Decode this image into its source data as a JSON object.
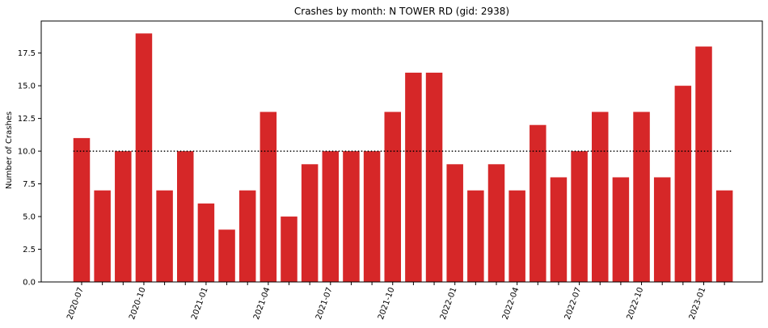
{
  "chart_data": {
    "type": "bar",
    "title": "Crashes by month: N TOWER RD (gid: 2938)",
    "xlabel": "",
    "ylabel": "Number of Crashes",
    "ylim": [
      0,
      19.95
    ],
    "yticks": [
      0.0,
      2.5,
      5.0,
      7.5,
      10.0,
      12.5,
      15.0,
      17.5
    ],
    "ytick_labels": [
      "0.0",
      "2.5",
      "5.0",
      "7.5",
      "10.0",
      "12.5",
      "15.0",
      "17.5"
    ],
    "categories": [
      "2020-07",
      "2020-08",
      "2020-09",
      "2020-10",
      "2020-11",
      "2020-12",
      "2021-01",
      "2021-02",
      "2021-03",
      "2021-04",
      "2021-05",
      "2021-06",
      "2021-07",
      "2021-08",
      "2021-09",
      "2021-10",
      "2021-11",
      "2021-12",
      "2022-01",
      "2022-02",
      "2022-03",
      "2022-04",
      "2022-05",
      "2022-06",
      "2022-07",
      "2022-08",
      "2022-09",
      "2022-10",
      "2022-11",
      "2022-12",
      "2023-01",
      "2023-02"
    ],
    "values": [
      11,
      7,
      10,
      19,
      7,
      10,
      6,
      4,
      7,
      13,
      5,
      9,
      10,
      10,
      10,
      13,
      16,
      16,
      9,
      7,
      9,
      7,
      12,
      8,
      10,
      13,
      8,
      13,
      8,
      15,
      18,
      7
    ],
    "xtick_labels": [
      "2020-07",
      "2020-10",
      "2021-01",
      "2021-04",
      "2021-07",
      "2021-10",
      "2022-01",
      "2022-04",
      "2022-07",
      "2022-10",
      "2023-01"
    ],
    "xtick_indices": [
      0,
      3,
      6,
      9,
      12,
      15,
      18,
      21,
      24,
      27,
      30
    ],
    "reference_line": {
      "value": 10,
      "style": "dotted",
      "color": "#000000"
    },
    "bar_color": "#d62728",
    "grid": false,
    "legend": "none"
  }
}
